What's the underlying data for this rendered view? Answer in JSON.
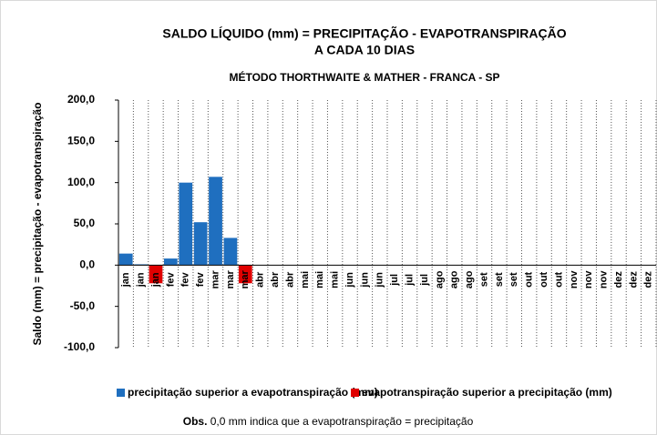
{
  "chart_data": {
    "type": "bar",
    "title": [
      "SALDO LÍQUIDO (mm) =  PRECIPITAÇÃO - EVAPOTRANSPIRAÇÃO",
      "A CADA 10 DIAS"
    ],
    "subtitle": "MÉTODO THORTHWAITE & MATHER - FRANCA - SP",
    "y_label": "Saldo (mm) = precipitação - evapotranspiração",
    "categories": [
      "jan",
      "jan",
      "jan",
      "fev",
      "fev",
      "fev",
      "mar",
      "mar",
      "mar",
      "abr",
      "abr",
      "abr",
      "mai",
      "mai",
      "mai",
      "jun",
      "jun",
      "jun",
      "jul",
      "jul",
      "jul",
      "ago",
      "ago",
      "ago",
      "set",
      "set",
      "set",
      "out",
      "out",
      "out",
      "nov",
      "nov",
      "nov",
      "dez",
      "dez",
      "dez"
    ],
    "series": [
      {
        "name": "precipitação superior a evapotranspiração (mm)",
        "color": "#1f6fbf",
        "values": [
          14,
          1,
          null,
          8,
          100,
          52,
          107,
          33,
          null,
          null,
          null,
          null,
          null,
          null,
          null,
          null,
          null,
          null,
          null,
          null,
          null,
          null,
          null,
          null,
          null,
          null,
          null,
          null,
          null,
          null,
          null,
          null,
          null,
          null,
          null,
          null
        ]
      },
      {
        "name": "evapotranspiração superior a precipitação (mm)",
        "color": "#e00000",
        "values": [
          null,
          null,
          -22,
          null,
          null,
          null,
          null,
          null,
          -22,
          null,
          null,
          null,
          null,
          null,
          null,
          null,
          null,
          null,
          null,
          null,
          null,
          null,
          null,
          null,
          null,
          null,
          null,
          null,
          null,
          null,
          null,
          null,
          null,
          null,
          null,
          null
        ]
      }
    ],
    "ylim": [
      -100,
      200
    ],
    "yticks": [
      {
        "value": 200,
        "label": "200,0"
      },
      {
        "value": 150,
        "label": "150,0"
      },
      {
        "value": 100,
        "label": "100,0"
      },
      {
        "value": 50,
        "label": "50,0"
      },
      {
        "value": 0,
        "label": "0,0"
      },
      {
        "value": -50,
        "label": "-50,0"
      },
      {
        "value": -100,
        "label": "-100,0"
      }
    ],
    "legend": "bottom",
    "note": {
      "bold": "Obs.",
      "text": "0,0 mm indica que a evapotranspiração = precipitação"
    }
  }
}
